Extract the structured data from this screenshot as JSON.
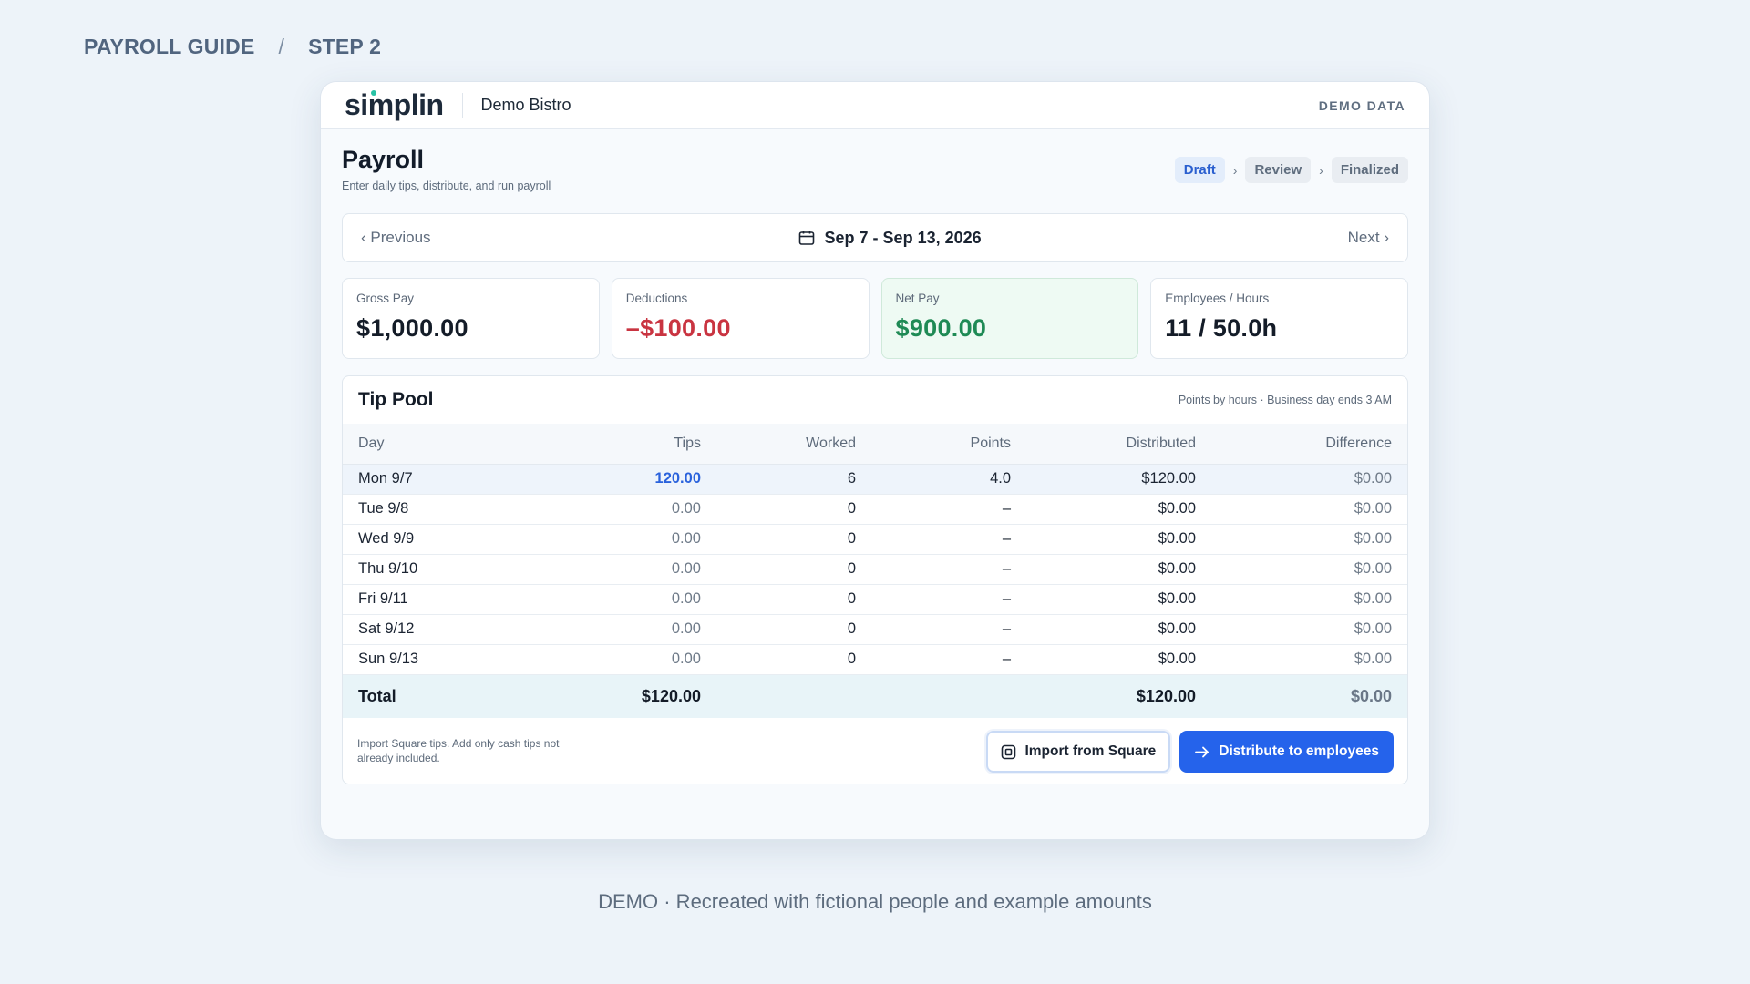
{
  "guide": {
    "title": "PAYROLL GUIDE",
    "separator": "/",
    "step": "STEP 2"
  },
  "app": {
    "logo": "simplin",
    "org": "Demo Bistro",
    "demo_tag": "DEMO DATA"
  },
  "page": {
    "title": "Payroll",
    "subtitle": "Enter daily tips, distribute, and run payroll"
  },
  "status_steps": [
    {
      "label": "Draft",
      "active": true
    },
    {
      "label": "Review",
      "active": false
    },
    {
      "label": "Finalized",
      "active": false
    }
  ],
  "week": {
    "prev": "‹ Previous",
    "range": "Sep 7 - Sep 13, 2026",
    "next": "Next ›"
  },
  "stats": [
    {
      "label": "Gross Pay",
      "value": "$1,000.00"
    },
    {
      "label": "Deductions",
      "value": "–$100.00"
    },
    {
      "label": "Net Pay",
      "value": "$900.00"
    },
    {
      "label": "Employees / Hours",
      "value": "11 / 50.0h"
    }
  ],
  "tip_pool": {
    "title": "Tip Pool",
    "note": "Points by hours · Business day ends 3 AM",
    "columns": [
      "Day",
      "Tips",
      "Worked",
      "Points",
      "Distributed",
      "Difference"
    ],
    "rows": [
      [
        "Mon 9/7",
        "120.00",
        "6",
        "4.0",
        "$120.00",
        "$0.00"
      ],
      [
        "Tue 9/8",
        "0.00",
        "0",
        "–",
        "$0.00",
        "$0.00"
      ],
      [
        "Wed 9/9",
        "0.00",
        "0",
        "–",
        "$0.00",
        "$0.00"
      ],
      [
        "Thu 9/10",
        "0.00",
        "0",
        "–",
        "$0.00",
        "$0.00"
      ],
      [
        "Fri 9/11",
        "0.00",
        "0",
        "–",
        "$0.00",
        "$0.00"
      ],
      [
        "Sat 9/12",
        "0.00",
        "0",
        "–",
        "$0.00",
        "$0.00"
      ],
      [
        "Sun 9/13",
        "0.00",
        "0",
        "–",
        "$0.00",
        "$0.00"
      ]
    ],
    "total": {
      "label": "Total",
      "tips": "$120.00",
      "distributed": "$120.00",
      "difference": "$0.00"
    },
    "footer_note": "Import Square tips. Add only cash tips not already included.",
    "import_label": "Import from Square",
    "distribute_label": "Distribute to employees"
  },
  "caption": "DEMO · Recreated with fictional people and example amounts",
  "colors": {
    "accent": "#2563eb",
    "negative": "#c93441",
    "positive": "#1f8a55",
    "logo_dot": "#28c2a6"
  },
  "icons": {
    "calendar": "calendar-icon",
    "square": "square-logo-icon",
    "arrow": "arrow-right-icon"
  }
}
